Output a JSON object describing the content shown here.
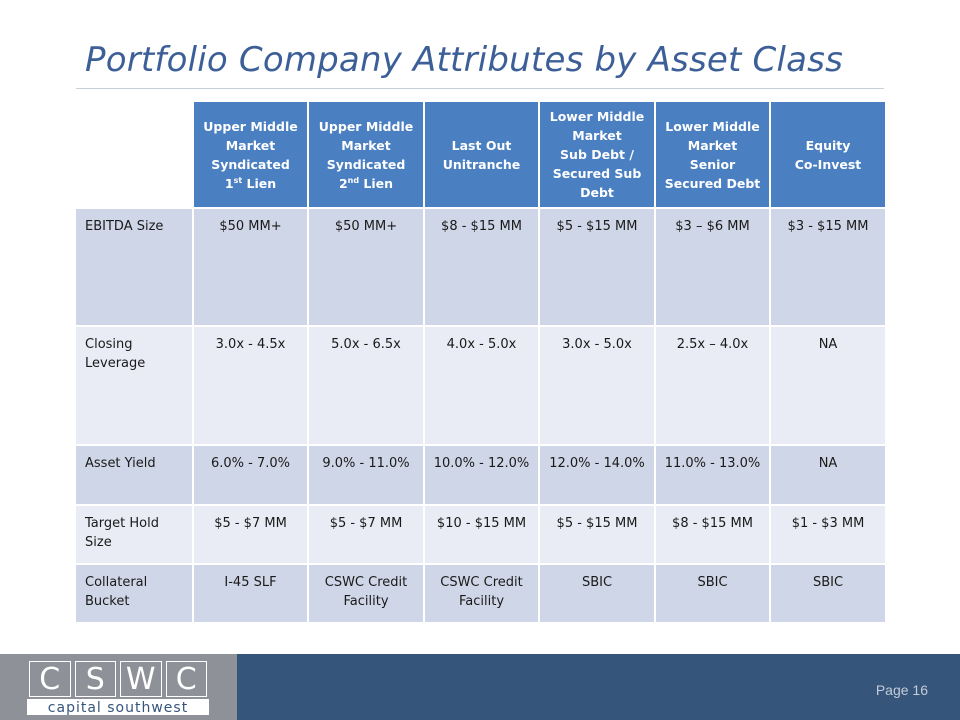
{
  "title": "Portfolio Company Attributes by Asset Class",
  "columns": [
    {
      "lines": [
        "Upper Middle",
        "Market",
        "Syndicated",
        "1",
        " Lien"
      ],
      "sup": "st"
    },
    {
      "lines": [
        "Upper Middle",
        "Market",
        "Syndicated",
        "2",
        " Lien"
      ],
      "sup": "nd"
    },
    {
      "lines": [
        "Last Out",
        "Unitranche"
      ]
    },
    {
      "lines": [
        "Lower Middle",
        "Market",
        "Sub Debt /",
        "Secured Sub",
        "Debt"
      ]
    },
    {
      "lines": [
        "Lower Middle",
        "Market",
        "Senior",
        "Secured Debt"
      ]
    },
    {
      "lines": [
        "Equity",
        "Co-Invest"
      ]
    }
  ],
  "header": {
    "c1": {
      "l1": "Upper Middle",
      "l2": "Market",
      "l3": "Syndicated",
      "l4a": "1",
      "l4sup": "st",
      "l4b": " Lien"
    },
    "c2": {
      "l1": "Upper Middle",
      "l2": "Market",
      "l3": "Syndicated",
      "l4a": "2",
      "l4sup": "nd",
      "l4b": " Lien"
    },
    "c3": {
      "l1": "Last Out",
      "l2": "Unitranche"
    },
    "c4": {
      "l1": "Lower Middle",
      "l2": "Market",
      "l3": "Sub Debt /",
      "l4": "Secured Sub",
      "l5": "Debt"
    },
    "c5": {
      "l1": "Lower Middle",
      "l2": "Market",
      "l3": "Senior",
      "l4": "Secured Debt"
    },
    "c6": {
      "l1": "Equity",
      "l2": "Co-Invest"
    }
  },
  "rows": [
    {
      "label": "EBITDA Size",
      "values": [
        "$50 MM+",
        "$50 MM+",
        "$8 - $15 MM",
        "$5 - $15 MM",
        "$3 – $6 MM",
        "$3 - $15 MM"
      ]
    },
    {
      "label": "Closing Leverage",
      "values": [
        "3.0x - 4.5x",
        "5.0x - 6.5x",
        "4.0x - 5.0x",
        "3.0x - 5.0x",
        "2.5x – 4.0x",
        "NA"
      ]
    },
    {
      "label": "Asset Yield",
      "values": [
        "6.0% - 7.0%",
        "9.0% - 11.0%",
        "10.0% - 12.0%",
        "12.0% - 14.0%",
        "11.0% - 13.0%",
        "NA"
      ]
    },
    {
      "label": "Target Hold Size",
      "values": [
        "$5 - $7 MM",
        "$5 - $7 MM",
        "$10 - $15 MM",
        "$5 - $15 MM",
        "$8 - $15 MM",
        "$1 - $3 MM"
      ]
    },
    {
      "label": "Collateral Bucket",
      "values": [
        "I-45 SLF",
        "CSWC Credit Facility",
        "CSWC Credit Facility",
        "SBIC",
        "SBIC",
        "SBIC"
      ]
    }
  ],
  "logo": {
    "letters": [
      "C",
      "S",
      "W",
      "C"
    ],
    "tagline": "capital southwest"
  },
  "page_label": "Page 16",
  "colors": {
    "header_fill": "#4a7fc1",
    "row_dark": "#cfd6e7",
    "row_light": "#e9ecf4",
    "footer": "#36557b",
    "title": "#3d5f98"
  }
}
